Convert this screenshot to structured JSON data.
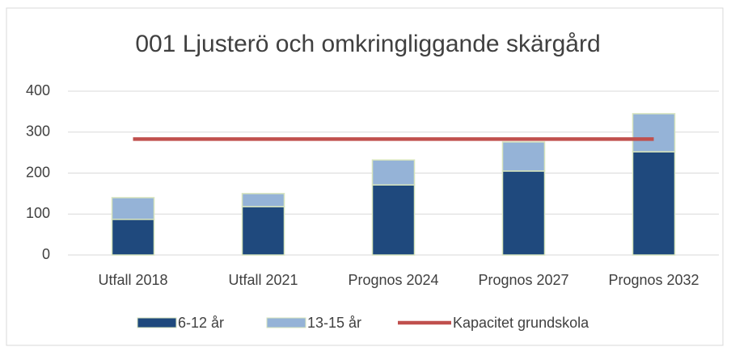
{
  "chart_data": {
    "type": "bar",
    "stacked": true,
    "title": "001 Ljusterö och omkringliggande skärgård",
    "categories": [
      "Utfall 2018",
      "Utfall 2021",
      "Prognos 2024",
      "Prognos 2027",
      "Prognos 2032"
    ],
    "series": [
      {
        "name": "6-12 år",
        "type": "bar",
        "color": "#1f497d",
        "values": [
          87,
          118,
          171,
          205,
          252
        ]
      },
      {
        "name": "13-15 år",
        "type": "bar",
        "color": "#95b3d7",
        "values": [
          53,
          32,
          61,
          71,
          93
        ]
      },
      {
        "name": "Kapacitet grundskola",
        "type": "line",
        "color": "#c0504d",
        "values": [
          283,
          283,
          283,
          283,
          283
        ]
      }
    ],
    "ylim": [
      0,
      400
    ],
    "yticks": [
      0,
      100,
      200,
      300,
      400
    ],
    "grid": true,
    "legend": "bottom"
  }
}
